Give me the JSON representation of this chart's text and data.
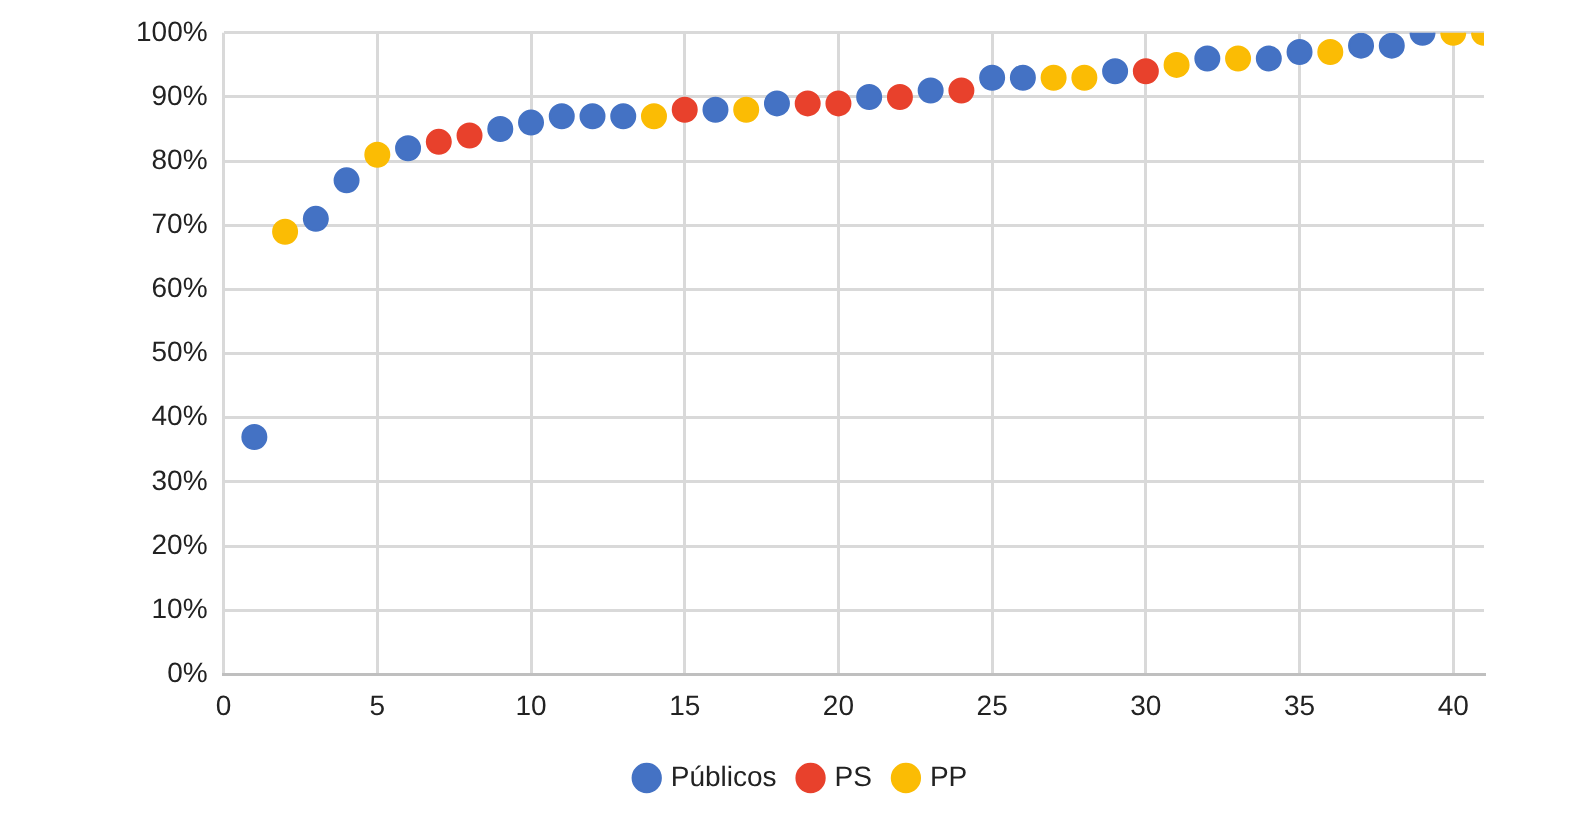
{
  "chart_data": {
    "type": "scatter",
    "xlim": [
      0,
      41
    ],
    "xticks": [
      0,
      5,
      10,
      15,
      20,
      25,
      30,
      35,
      40
    ],
    "ylim": [
      0,
      100
    ],
    "yticks": [
      {
        "value": 0,
        "label": "0%"
      },
      {
        "value": 10,
        "label": "10%"
      },
      {
        "value": 20,
        "label": "20%"
      },
      {
        "value": 30,
        "label": "30%"
      },
      {
        "value": 40,
        "label": "40%"
      },
      {
        "value": 50,
        "label": "50%"
      },
      {
        "value": 60,
        "label": "60%"
      },
      {
        "value": 70,
        "label": "70%"
      },
      {
        "value": 80,
        "label": "80%"
      },
      {
        "value": 90,
        "label": "90%"
      },
      {
        "value": 100,
        "label": "100%"
      }
    ],
    "grid": true,
    "legend": "bottom",
    "marker": "circle",
    "series": [
      {
        "name": "Públicos",
        "color": "#4472c4",
        "x": [
          1,
          3,
          4,
          6,
          9,
          10,
          11,
          12,
          13,
          16,
          18,
          21,
          23,
          25,
          26,
          29,
          32,
          34,
          35,
          37,
          38,
          39
        ],
        "values": [
          37,
          71,
          77,
          82,
          85,
          86,
          87,
          87,
          87,
          88,
          89,
          90,
          91,
          93,
          93,
          94,
          96,
          96,
          97,
          98,
          98,
          100
        ]
      },
      {
        "name": "PS",
        "color": "#e8412c",
        "x": [
          7,
          8,
          15,
          19,
          20,
          22,
          24,
          30
        ],
        "values": [
          83,
          84,
          88,
          89,
          89,
          90,
          91,
          94
        ]
      },
      {
        "name": "PP",
        "color": "#fbbc04",
        "x": [
          2,
          5,
          14,
          17,
          27,
          28,
          31,
          33,
          36,
          40,
          41
        ],
        "values": [
          69,
          81,
          87,
          88,
          93,
          93,
          95,
          96,
          97,
          100,
          100
        ]
      }
    ]
  }
}
